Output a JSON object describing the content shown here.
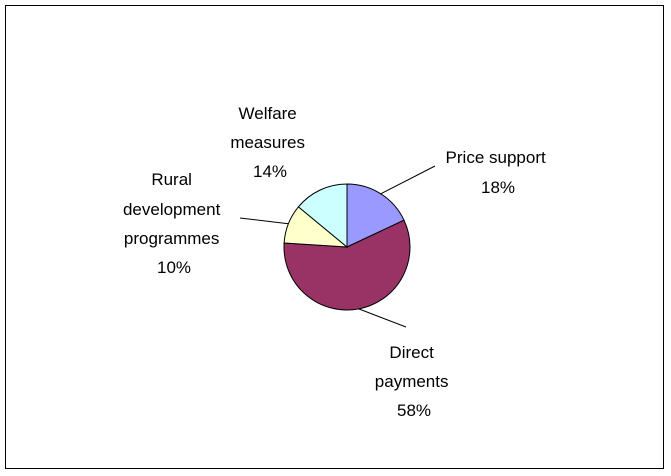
{
  "chart_data": {
    "type": "pie",
    "slices": [
      {
        "label": "Price support",
        "label_lines": [
          "Price support",
          "18%"
        ],
        "value": 18,
        "color": "#9999ff"
      },
      {
        "label": "Direct payments",
        "label_lines": [
          "Direct",
          "payments",
          "58%"
        ],
        "value": 58,
        "color": "#993366"
      },
      {
        "label": "Rural development programmes",
        "label_lines": [
          "Rural",
          "development",
          "programmes",
          "10%"
        ],
        "value": 10,
        "color": "#ffffcc"
      },
      {
        "label": "Welfare measures",
        "label_lines": [
          "Welfare",
          "measures",
          "14%"
        ],
        "value": 14,
        "color": "#ccffff"
      }
    ],
    "start_angle_deg": 0,
    "direction": "clockwise",
    "legend": "none"
  }
}
